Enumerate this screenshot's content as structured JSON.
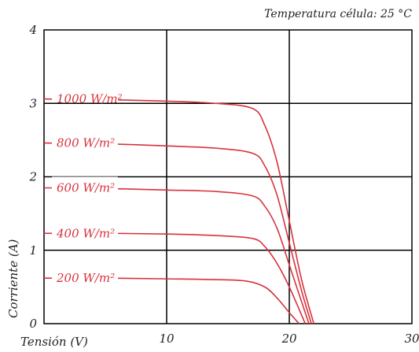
{
  "chart_data": {
    "type": "line",
    "title": "",
    "annotation": "Temperatura célula: 25 °C",
    "xlabel": "Tensión (V)",
    "ylabel": "Corriente (A)",
    "xlim": [
      0,
      30
    ],
    "ylim": [
      0,
      4
    ],
    "xticks": [
      "10",
      "20",
      "30"
    ],
    "yticks": [
      "0",
      "1",
      "2",
      "3",
      "4"
    ],
    "grid": true,
    "curve_color": "#d8323c",
    "grid_color": "#000000",
    "series": [
      {
        "name": "1000 W/m²",
        "x": [
          0,
          5,
          10,
          14,
          17,
          18,
          19,
          20,
          21,
          22.0
        ],
        "y": [
          3.06,
          3.05,
          3.03,
          3.0,
          2.93,
          2.7,
          2.2,
          1.4,
          0.6,
          0
        ]
      },
      {
        "name": "800 W/m²",
        "x": [
          0,
          5,
          10,
          14,
          17,
          18,
          19,
          20,
          21,
          21.8
        ],
        "y": [
          2.46,
          2.45,
          2.42,
          2.39,
          2.32,
          2.15,
          1.75,
          1.1,
          0.45,
          0
        ]
      },
      {
        "name": "600 W/m²",
        "x": [
          0,
          5,
          10,
          14,
          17,
          18,
          19,
          20,
          21,
          21.6
        ],
        "y": [
          1.85,
          1.84,
          1.82,
          1.8,
          1.74,
          1.6,
          1.3,
          0.8,
          0.3,
          0
        ]
      },
      {
        "name": "400 W/m²",
        "x": [
          0,
          5,
          10,
          14,
          17,
          18,
          19,
          20,
          21.3
        ],
        "y": [
          1.23,
          1.23,
          1.22,
          1.2,
          1.16,
          1.05,
          0.82,
          0.5,
          0
        ]
      },
      {
        "name": "200 W/m²",
        "x": [
          0,
          5,
          10,
          14,
          16.5,
          18,
          19,
          20,
          20.8
        ],
        "y": [
          0.62,
          0.62,
          0.61,
          0.6,
          0.58,
          0.5,
          0.35,
          0.15,
          0
        ]
      }
    ]
  }
}
